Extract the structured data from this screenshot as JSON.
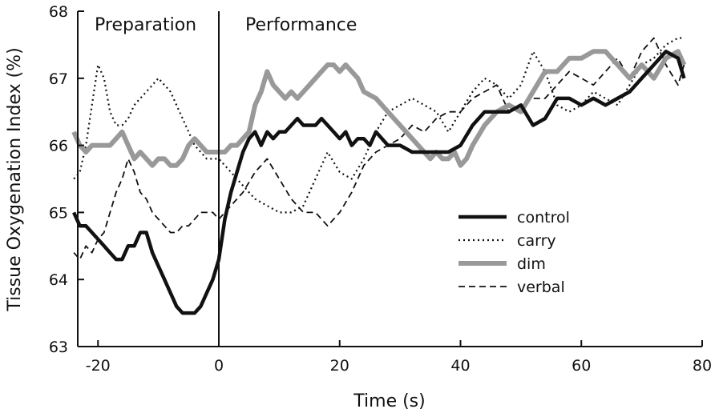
{
  "chart_data": {
    "type": "line",
    "title": "",
    "xlabel": "Time (s)",
    "ylabel": "Tissue Oxygenation Index (%)",
    "xlim": [
      -24,
      80
    ],
    "ylim": [
      63,
      68
    ],
    "xticks": [
      -20,
      0,
      20,
      40,
      60,
      80
    ],
    "yticks": [
      63,
      64,
      65,
      66,
      67,
      68
    ],
    "xtick_labels": [
      "-20",
      "0",
      "20",
      "40",
      "60",
      "80"
    ],
    "ytick_labels": [
      "63",
      "64",
      "65",
      "66",
      "67",
      "68"
    ],
    "annotations": [
      {
        "text": "Preparation",
        "x": -12,
        "y": 67.8
      },
      {
        "text": "Performance",
        "x": 12,
        "y": 67.8
      }
    ],
    "vline": {
      "x": 0
    },
    "legend_position": "center-right",
    "series": [
      {
        "name": "control",
        "x": [
          -24,
          -23,
          -22,
          -21,
          -20,
          -19,
          -18,
          -17,
          -16,
          -15,
          -14,
          -13,
          -12,
          -11,
          -10,
          -9,
          -8,
          -7,
          -6,
          -5,
          -4,
          -3,
          -2,
          -1,
          0,
          1,
          2,
          3,
          4,
          5,
          6,
          7,
          8,
          9,
          10,
          11,
          12,
          13,
          14,
          15,
          16,
          17,
          18,
          19,
          20,
          21,
          22,
          23,
          24,
          25,
          26,
          28,
          30,
          32,
          34,
          36,
          38,
          40,
          42,
          44,
          46,
          48,
          50,
          52,
          54,
          56,
          58,
          60,
          62,
          64,
          66,
          68,
          70,
          72,
          74,
          76,
          77
        ],
        "values": [
          65.0,
          64.8,
          64.8,
          64.7,
          64.6,
          64.5,
          64.4,
          64.3,
          64.3,
          64.5,
          64.5,
          64.7,
          64.7,
          64.4,
          64.2,
          64.0,
          63.8,
          63.6,
          63.5,
          63.5,
          63.5,
          63.6,
          63.8,
          64.0,
          64.3,
          64.9,
          65.3,
          65.6,
          65.9,
          66.1,
          66.2,
          66.0,
          66.2,
          66.1,
          66.2,
          66.2,
          66.3,
          66.4,
          66.3,
          66.3,
          66.3,
          66.4,
          66.3,
          66.2,
          66.1,
          66.2,
          66.0,
          66.1,
          66.1,
          66.0,
          66.2,
          66.0,
          66.0,
          65.9,
          65.9,
          65.9,
          65.9,
          66.0,
          66.3,
          66.5,
          66.5,
          66.5,
          66.6,
          66.3,
          66.4,
          66.7,
          66.7,
          66.6,
          66.7,
          66.6,
          66.7,
          66.8,
          67.0,
          67.2,
          67.4,
          67.3,
          67.0
        ]
      },
      {
        "name": "carry",
        "x": [
          -24,
          -23,
          -22,
          -21,
          -20,
          -19,
          -18,
          -17,
          -16,
          -15,
          -14,
          -13,
          -12,
          -11,
          -10,
          -9,
          -8,
          -7,
          -6,
          -5,
          -4,
          -3,
          -2,
          -1,
          0,
          2,
          4,
          6,
          8,
          10,
          12,
          14,
          16,
          18,
          20,
          22,
          24,
          26,
          28,
          30,
          32,
          34,
          36,
          38,
          40,
          42,
          44,
          46,
          48,
          50,
          52,
          54,
          56,
          58,
          60,
          62,
          64,
          66,
          68,
          70,
          72,
          74,
          76,
          77
        ],
        "values": [
          65.5,
          65.6,
          66.0,
          66.6,
          67.2,
          67.0,
          66.5,
          66.3,
          66.3,
          66.4,
          66.6,
          66.7,
          66.8,
          66.9,
          67.0,
          66.9,
          66.8,
          66.6,
          66.4,
          66.2,
          66.0,
          65.9,
          65.8,
          65.8,
          65.8,
          65.6,
          65.4,
          65.2,
          65.1,
          65.0,
          65.0,
          65.1,
          65.5,
          65.9,
          65.6,
          65.5,
          65.8,
          66.2,
          66.5,
          66.6,
          66.7,
          66.6,
          66.5,
          66.2,
          66.5,
          66.8,
          67.0,
          66.9,
          66.7,
          66.9,
          67.4,
          67.1,
          66.6,
          66.5,
          66.6,
          66.8,
          66.7,
          66.6,
          66.9,
          67.2,
          67.3,
          67.5,
          67.6,
          67.6
        ]
      },
      {
        "name": "dim",
        "x": [
          -24,
          -23,
          -22,
          -21,
          -20,
          -19,
          -18,
          -17,
          -16,
          -15,
          -14,
          -13,
          -12,
          -11,
          -10,
          -9,
          -8,
          -7,
          -6,
          -5,
          -4,
          -3,
          -2,
          -1,
          0,
          1,
          2,
          3,
          4,
          5,
          6,
          7,
          8,
          9,
          10,
          11,
          12,
          13,
          14,
          15,
          16,
          17,
          18,
          19,
          20,
          21,
          22,
          23,
          24,
          26,
          28,
          30,
          32,
          34,
          35,
          36,
          37,
          38,
          39,
          40,
          41,
          42,
          44,
          46,
          48,
          50,
          52,
          54,
          56,
          58,
          60,
          62,
          64,
          66,
          68,
          70,
          72,
          74,
          76,
          77
        ],
        "values": [
          66.2,
          66.0,
          65.9,
          66.0,
          66.0,
          66.0,
          66.0,
          66.1,
          66.2,
          66.0,
          65.8,
          65.9,
          65.8,
          65.7,
          65.8,
          65.8,
          65.7,
          65.7,
          65.8,
          66.0,
          66.1,
          66.0,
          65.9,
          65.9,
          65.9,
          65.9,
          66.0,
          66.0,
          66.1,
          66.2,
          66.6,
          66.8,
          67.1,
          66.9,
          66.8,
          66.7,
          66.8,
          66.7,
          66.8,
          66.9,
          67.0,
          67.1,
          67.2,
          67.2,
          67.1,
          67.2,
          67.1,
          67.0,
          66.8,
          66.7,
          66.5,
          66.3,
          66.1,
          65.9,
          65.8,
          65.9,
          65.8,
          65.8,
          65.9,
          65.7,
          65.8,
          66.0,
          66.3,
          66.5,
          66.6,
          66.5,
          66.8,
          67.1,
          67.1,
          67.3,
          67.3,
          67.4,
          67.4,
          67.2,
          67.0,
          67.2,
          67.0,
          67.3,
          67.4,
          67.2
        ]
      },
      {
        "name": "verbal",
        "x": [
          -24,
          -23,
          -22,
          -21,
          -20,
          -19,
          -18,
          -17,
          -16,
          -15,
          -14,
          -13,
          -12,
          -11,
          -10,
          -9,
          -8,
          -7,
          -6,
          -5,
          -4,
          -3,
          -2,
          -1,
          0,
          2,
          4,
          6,
          8,
          10,
          12,
          14,
          16,
          18,
          20,
          22,
          24,
          26,
          28,
          30,
          32,
          34,
          36,
          38,
          40,
          42,
          44,
          46,
          48,
          50,
          52,
          54,
          56,
          58,
          60,
          62,
          64,
          66,
          68,
          70,
          72,
          74,
          76,
          77
        ],
        "values": [
          64.4,
          64.3,
          64.5,
          64.4,
          64.6,
          64.7,
          65.0,
          65.3,
          65.5,
          65.8,
          65.6,
          65.3,
          65.2,
          65.0,
          64.9,
          64.8,
          64.7,
          64.7,
          64.8,
          64.8,
          64.9,
          65.0,
          65.0,
          65.0,
          64.9,
          65.1,
          65.3,
          65.6,
          65.8,
          65.5,
          65.2,
          65.0,
          65.0,
          64.8,
          65.0,
          65.3,
          65.7,
          65.9,
          66.0,
          66.1,
          66.3,
          66.2,
          66.4,
          66.5,
          66.5,
          66.7,
          66.8,
          66.9,
          66.5,
          66.6,
          66.7,
          66.7,
          66.9,
          67.1,
          67.0,
          66.9,
          67.1,
          67.3,
          67.0,
          67.4,
          67.6,
          67.2,
          66.9,
          67.2
        ]
      }
    ],
    "series_styles": [
      {
        "color": "#111111",
        "width": 4.5,
        "dash": ""
      },
      {
        "color": "#111111",
        "width": 2.2,
        "dash": "2 4"
      },
      {
        "color": "#999999",
        "width": 6,
        "dash": ""
      },
      {
        "color": "#111111",
        "width": 1.8,
        "dash": "8 5"
      }
    ]
  }
}
